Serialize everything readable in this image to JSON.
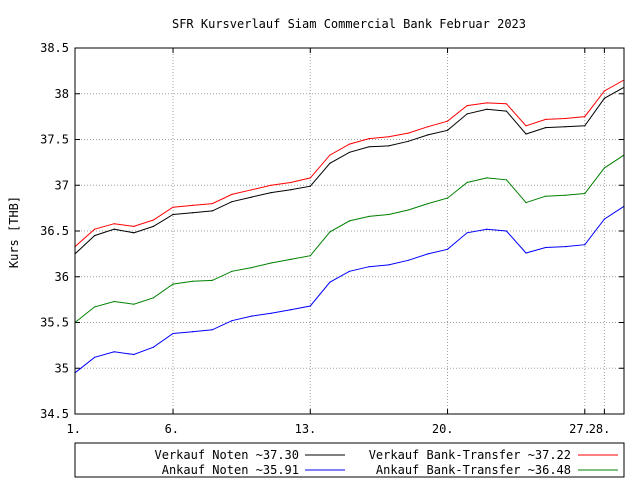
{
  "chart_data": {
    "type": "line",
    "title": "SFR Kursverlauf Siam Commercial Bank Februar 2023",
    "ylabel": "Kurs [THB]",
    "xlabel": "",
    "ylim": [
      34.5,
      38.5
    ],
    "xlim": [
      1,
      29
    ],
    "grid": true,
    "grid_style": "dotted",
    "legend_position": "bottom",
    "y_ticks": [
      {
        "value": 34.5,
        "label": "34.5"
      },
      {
        "value": 35,
        "label": "35"
      },
      {
        "value": 35.5,
        "label": "35.5"
      },
      {
        "value": 36,
        "label": "36"
      },
      {
        "value": 36.5,
        "label": "36.5"
      },
      {
        "value": 37,
        "label": "37"
      },
      {
        "value": 37.5,
        "label": "37.5"
      },
      {
        "value": 38,
        "label": "38"
      },
      {
        "value": 38.5,
        "label": "38.5"
      }
    ],
    "x_ticks": [
      {
        "value": 1,
        "label": "1."
      },
      {
        "value": 6,
        "label": "6."
      },
      {
        "value": 13,
        "label": "13."
      },
      {
        "value": 20,
        "label": "20."
      },
      {
        "value": 27,
        "label": "27."
      },
      {
        "value": 28,
        "label": "28."
      }
    ],
    "series": [
      {
        "name": "Verkauf Noten ~37.30",
        "color": "#000000",
        "x": [
          1,
          2,
          3,
          4,
          5,
          6,
          7,
          8,
          9,
          10,
          11,
          12,
          13,
          14,
          15,
          16,
          17,
          18,
          19,
          20,
          21,
          22,
          23,
          24,
          25,
          26,
          27,
          28,
          29
        ],
        "y": [
          36.25,
          36.45,
          36.52,
          36.48,
          36.55,
          36.68,
          36.7,
          36.72,
          36.82,
          36.87,
          36.92,
          36.95,
          36.99,
          37.24,
          37.36,
          37.42,
          37.43,
          37.48,
          37.55,
          37.6,
          37.78,
          37.83,
          37.81,
          37.56,
          37.63,
          37.64,
          37.65,
          37.95,
          38.07
        ]
      },
      {
        "name": "Verkauf Bank-Transfer ~37.22",
        "color": "#ff0000",
        "x": [
          1,
          2,
          3,
          4,
          5,
          6,
          7,
          8,
          9,
          10,
          11,
          12,
          13,
          14,
          15,
          16,
          17,
          18,
          19,
          20,
          21,
          22,
          23,
          24,
          25,
          26,
          27,
          28,
          29
        ],
        "y": [
          36.33,
          36.52,
          36.58,
          36.55,
          36.62,
          36.76,
          36.78,
          36.8,
          36.9,
          36.95,
          37.0,
          37.03,
          37.08,
          37.33,
          37.45,
          37.51,
          37.53,
          37.57,
          37.64,
          37.7,
          37.87,
          37.9,
          37.89,
          37.65,
          37.72,
          37.73,
          37.75,
          38.03,
          38.15
        ]
      },
      {
        "name": "Ankauf  Noten ~35.91",
        "color": "#0000ff",
        "x": [
          1,
          2,
          3,
          4,
          5,
          6,
          7,
          8,
          9,
          10,
          11,
          12,
          13,
          14,
          15,
          16,
          17,
          18,
          19,
          20,
          21,
          22,
          23,
          24,
          25,
          26,
          27,
          28,
          29
        ],
        "y": [
          34.95,
          35.12,
          35.18,
          35.15,
          35.23,
          35.38,
          35.4,
          35.42,
          35.52,
          35.57,
          35.6,
          35.64,
          35.68,
          35.94,
          36.06,
          36.11,
          36.13,
          36.18,
          36.25,
          36.3,
          36.48,
          36.52,
          36.5,
          36.26,
          36.32,
          36.33,
          36.35,
          36.63,
          36.77
        ]
      },
      {
        "name": "Ankauf  Bank-Transfer ~36.48",
        "color": "#008000",
        "x": [
          1,
          2,
          3,
          4,
          5,
          6,
          7,
          8,
          9,
          10,
          11,
          12,
          13,
          14,
          15,
          16,
          17,
          18,
          19,
          20,
          21,
          22,
          23,
          24,
          25,
          26,
          27,
          28,
          29
        ],
        "y": [
          35.5,
          35.67,
          35.73,
          35.7,
          35.77,
          35.92,
          35.95,
          35.96,
          36.06,
          36.1,
          36.15,
          36.19,
          36.23,
          36.49,
          36.61,
          36.66,
          36.68,
          36.73,
          36.8,
          36.86,
          37.03,
          37.08,
          37.06,
          36.81,
          36.88,
          36.89,
          36.91,
          37.19,
          37.33
        ]
      }
    ]
  }
}
